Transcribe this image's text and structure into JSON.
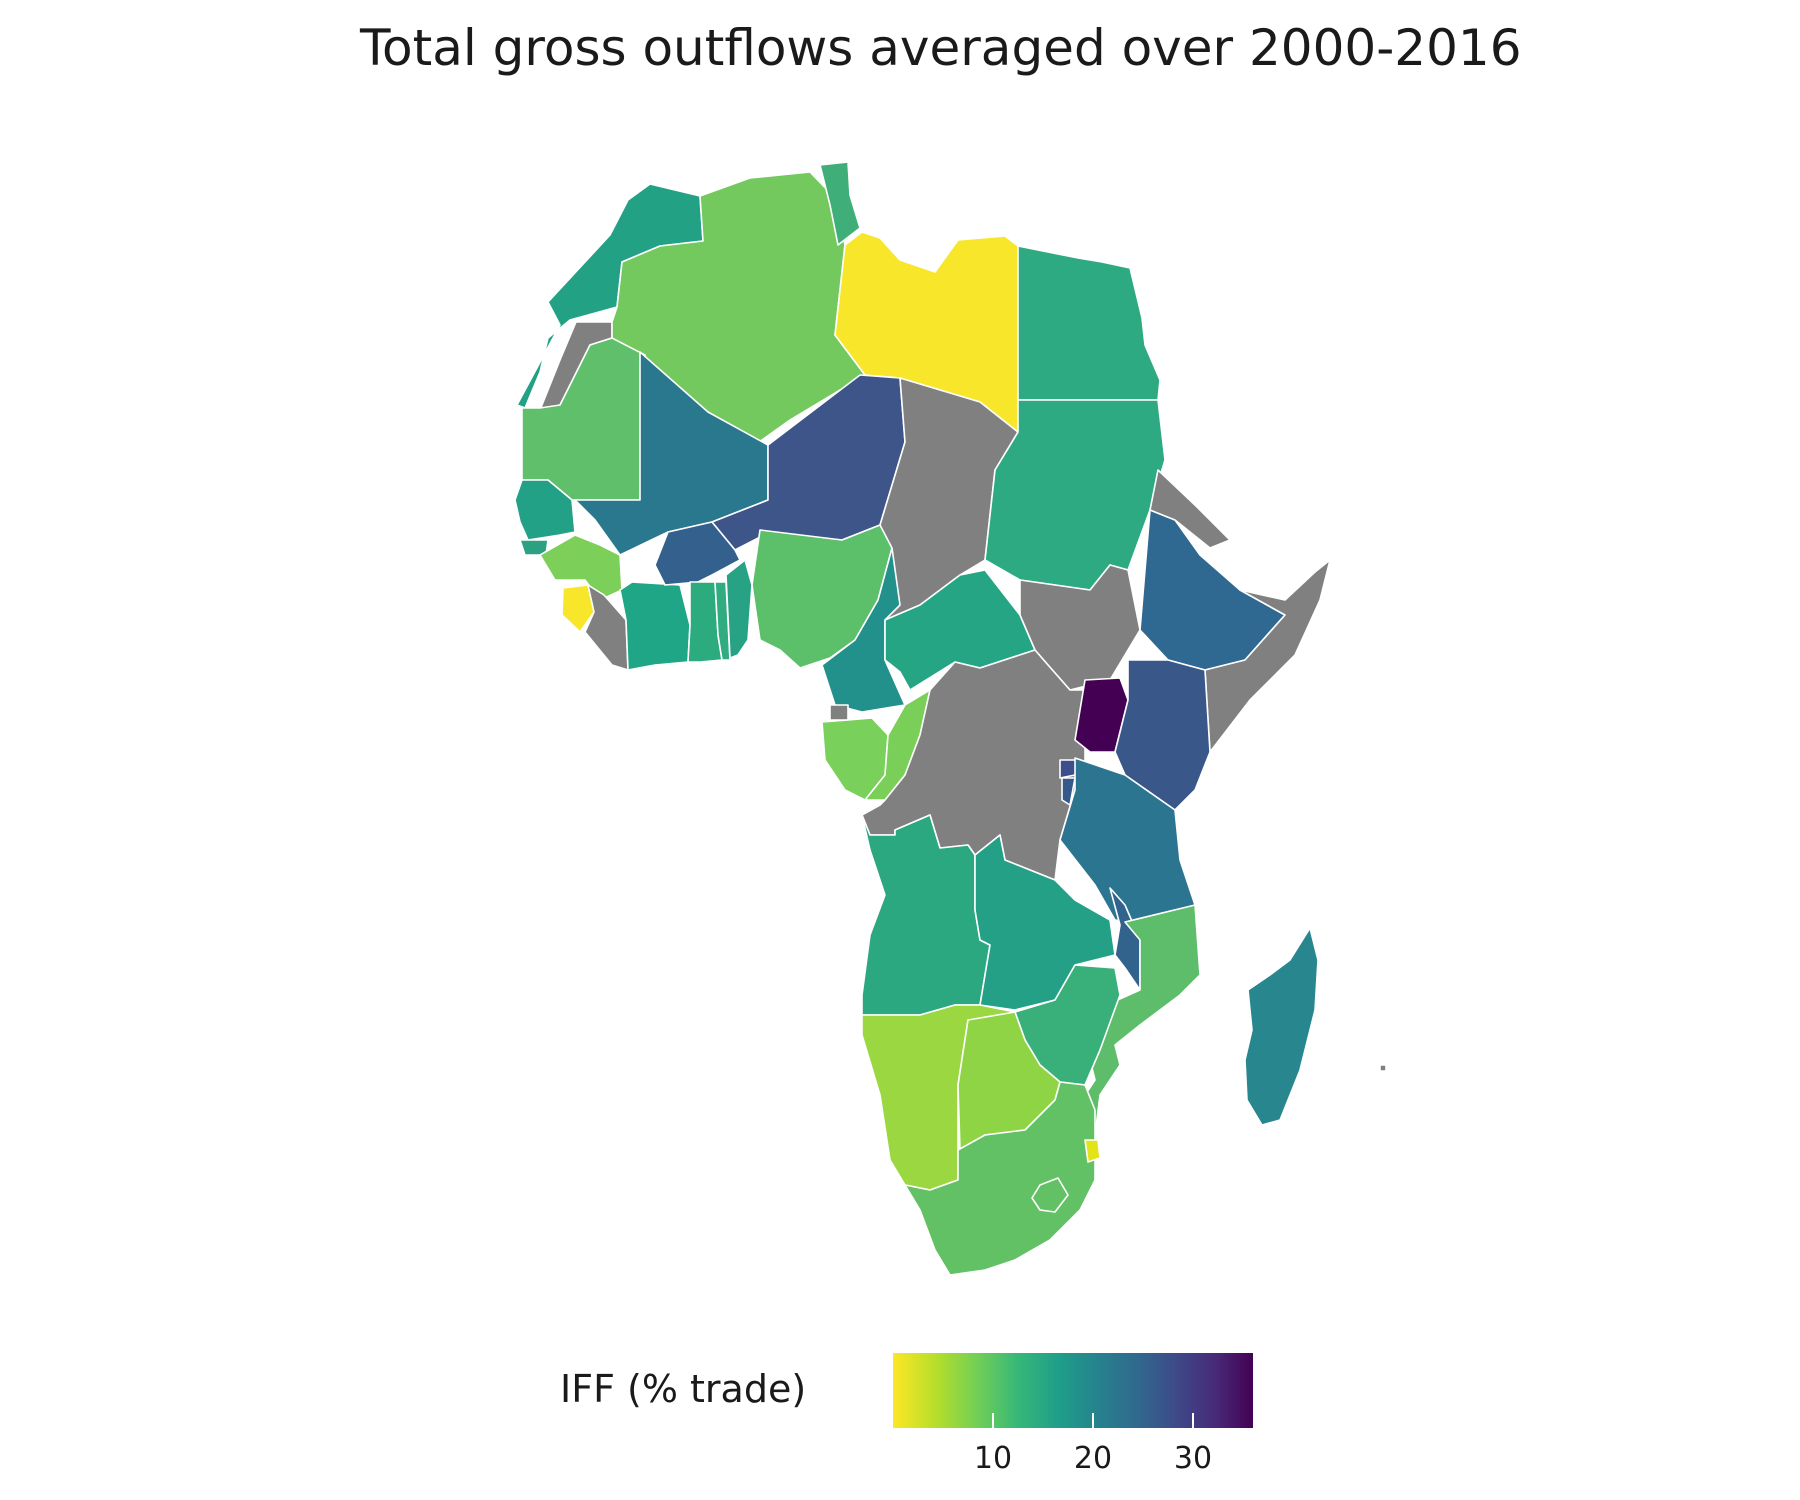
{
  "title": "Total gross outflows averaged over 2000-2016",
  "legend": {
    "title": "IFF (% trade)",
    "range": [
      0,
      36
    ],
    "ticks": [
      {
        "value": 10,
        "label": "10"
      },
      {
        "value": 20,
        "label": "20"
      },
      {
        "value": 30,
        "label": "30"
      }
    ],
    "palette": "viridis (reversed)",
    "no_data_color": "#808080"
  }
}
